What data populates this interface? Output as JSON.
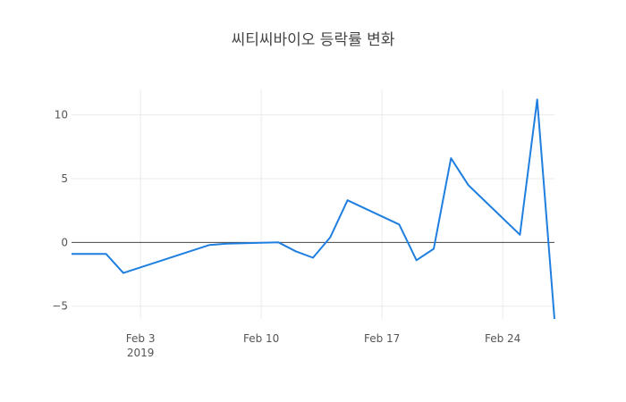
{
  "chart_data": {
    "type": "line",
    "title": "씨티씨바이오 등락률 변화",
    "xlabel": "",
    "ylabel": "",
    "x_ticks": [
      {
        "date": "2019-02-03",
        "label": "Feb 3",
        "sublabel": "2019"
      },
      {
        "date": "2019-02-10",
        "label": "Feb 10",
        "sublabel": ""
      },
      {
        "date": "2019-02-17",
        "label": "Feb 17",
        "sublabel": ""
      },
      {
        "date": "2019-02-24",
        "label": "Feb 24",
        "sublabel": ""
      }
    ],
    "y_ticks": [
      10,
      5,
      0,
      -5
    ],
    "y_tick_labels": [
      "10",
      "5",
      "0",
      "−5"
    ],
    "xlim": [
      "2019-01-30",
      "2019-02-27"
    ],
    "ylim": [
      -6,
      12
    ],
    "grid": true,
    "zero_line": true,
    "line_color": "#1f7fe0",
    "series": [
      {
        "x": [
          "2019-01-30",
          "2019-01-31",
          "2019-02-01",
          "2019-02-02",
          "2019-02-07",
          "2019-02-08",
          "2019-02-11",
          "2019-02-12",
          "2019-02-13",
          "2019-02-14",
          "2019-02-15",
          "2019-02-18",
          "2019-02-19",
          "2019-02-20",
          "2019-02-21",
          "2019-02-22",
          "2019-02-25",
          "2019-02-26",
          "2019-02-27"
        ],
        "values": [
          -0.9,
          -0.9,
          -0.9,
          -2.4,
          -0.2,
          -0.1,
          0.0,
          -0.7,
          -1.2,
          0.4,
          3.3,
          1.4,
          -1.4,
          -0.5,
          6.6,
          4.5,
          0.6,
          11.2,
          -6.0
        ]
      }
    ]
  }
}
